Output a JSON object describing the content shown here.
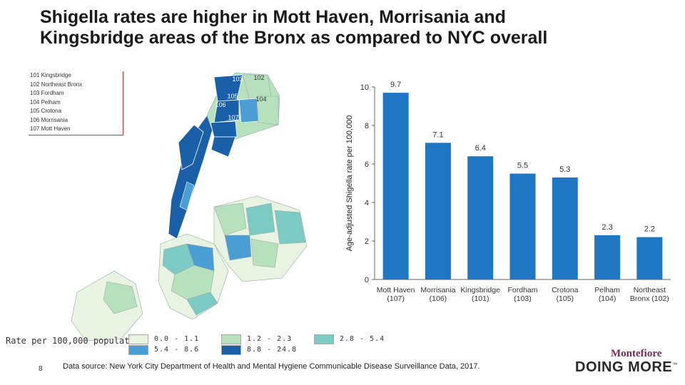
{
  "title": {
    "line1": "Shigella rates are higher in Mott Haven, Morrisania and",
    "line2": "Kingsbridge areas of the Bronx as compared to NYC overall"
  },
  "map": {
    "district_legend": [
      "101 Kingsbridge",
      "102 Northeast Bronx",
      "103 Fordham",
      "104 Pelham",
      "105 Crotona",
      "106 Morrisania",
      "107 Mott Haven"
    ],
    "district_labels": [
      "101",
      "102",
      "103",
      "104",
      "105",
      "106",
      "107"
    ],
    "rate_legend_title": "Rate per 100,000 population",
    "rate_legend": [
      {
        "label": "0.0 - 1.1",
        "color": "#e8f3e2"
      },
      {
        "label": "1.2 - 2.3",
        "color": "#b7e0bc"
      },
      {
        "label": "2.8 - 5.4",
        "color": "#7ccac4"
      },
      {
        "label": "5.4 - 8.6",
        "color": "#4a9ed3"
      },
      {
        "label": "8.8 - 24.8",
        "color": "#1a60a8"
      }
    ]
  },
  "chart_data": {
    "type": "bar",
    "categories": [
      "Mott Haven (107)",
      "Morrisania (106)",
      "Kingsbridge (101)",
      "Fordham (103)",
      "Crotona (105)",
      "Pelham (104)",
      "Northeast Bronx (102)"
    ],
    "category_lines": [
      [
        "Mott Haven",
        "(107)"
      ],
      [
        "Morrisania",
        "(106)"
      ],
      [
        "Kingsbridge",
        "(101)"
      ],
      [
        "Fordham",
        "(103)"
      ],
      [
        "Crotona",
        "(105)"
      ],
      [
        "Pelham",
        "(104)"
      ],
      [
        "Northeast",
        "Bronx (102)"
      ]
    ],
    "values": [
      9.7,
      7.1,
      6.4,
      5.5,
      5.3,
      2.3,
      2.2
    ],
    "value_labels": [
      "9.7",
      "7.1",
      "6.4",
      "5.5",
      "5.3",
      "2.3",
      "2.2"
    ],
    "ylabel": "Age-adjusted Shigella rate per 100,000",
    "ylim": [
      0,
      10
    ],
    "yticks": [
      0,
      2,
      4,
      6,
      8,
      10
    ],
    "bar_color": "#1f77c4",
    "grid": false
  },
  "footer": {
    "slide_number": "8",
    "source": "Data source: New York City Department of Health and Mental Hygiene Communicable Disease Surveillance Data, 2017."
  },
  "logo": {
    "name": "Montefiore",
    "tagline": "DOING MORE",
    "tm": "™"
  }
}
